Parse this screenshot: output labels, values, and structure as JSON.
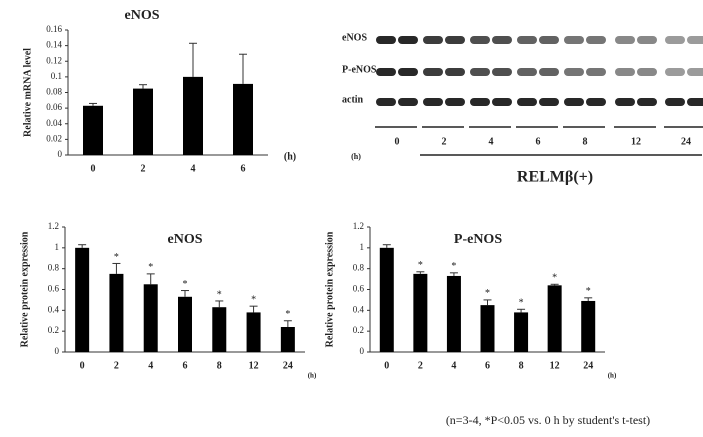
{
  "chart_data": [
    {
      "type": "bar",
      "title": "eNOS",
      "y_label": "Relative mRNA level",
      "x_unit": "(h)",
      "categories": [
        "0",
        "2",
        "4",
        "6"
      ],
      "values": [
        0.063,
        0.085,
        0.1,
        0.091
      ],
      "errors": [
        0.003,
        0.005,
        0.043,
        0.038
      ],
      "color": "#000000",
      "ylim": [
        0,
        0.16
      ],
      "yticks": [
        0,
        0.02,
        0.04,
        0.06,
        0.08,
        0.1,
        0.12,
        0.14,
        0.16
      ]
    },
    {
      "type": "bar",
      "title": "eNOS",
      "y_label": "Relative protein expression",
      "x_unit": "(h)",
      "categories": [
        "0",
        "2",
        "4",
        "6",
        "8",
        "12",
        "24"
      ],
      "values": [
        1.0,
        0.75,
        0.65,
        0.53,
        0.43,
        0.38,
        0.24
      ],
      "errors": [
        0.03,
        0.1,
        0.1,
        0.06,
        0.06,
        0.06,
        0.06
      ],
      "significance": [
        null,
        "*",
        "*",
        "*",
        "*",
        "*",
        "*"
      ],
      "color": "#000000",
      "ylim": [
        0,
        1.2
      ],
      "yticks": [
        0,
        0.2,
        0.4,
        0.6,
        0.8,
        1,
        1.2
      ]
    },
    {
      "type": "bar",
      "title": "P-eNOS",
      "y_label": "Relative protein expression",
      "x_unit": "(h)",
      "categories": [
        "0",
        "2",
        "4",
        "6",
        "8",
        "12",
        "24"
      ],
      "values": [
        1.0,
        0.75,
        0.73,
        0.45,
        0.38,
        0.64,
        0.49
      ],
      "errors": [
        0.03,
        0.02,
        0.03,
        0.05,
        0.03,
        0.01,
        0.03
      ],
      "significance": [
        null,
        "*",
        "*",
        "*",
        "*",
        "*",
        "*"
      ],
      "color": "#000000",
      "ylim": [
        0,
        1.2
      ],
      "yticks": [
        0,
        0.2,
        0.4,
        0.6,
        0.8,
        1,
        1.2
      ]
    }
  ],
  "blot": {
    "rows": [
      "eNOS",
      "P-eNOS",
      "actin"
    ],
    "time_unit": "(h)",
    "times": [
      "0",
      "2",
      "4",
      "6",
      "8",
      "12",
      "24"
    ],
    "treatment": "RELMβ(+)"
  },
  "footnote": "(n=3-4, *P<0.05 vs. 0 h by student's t-test)"
}
